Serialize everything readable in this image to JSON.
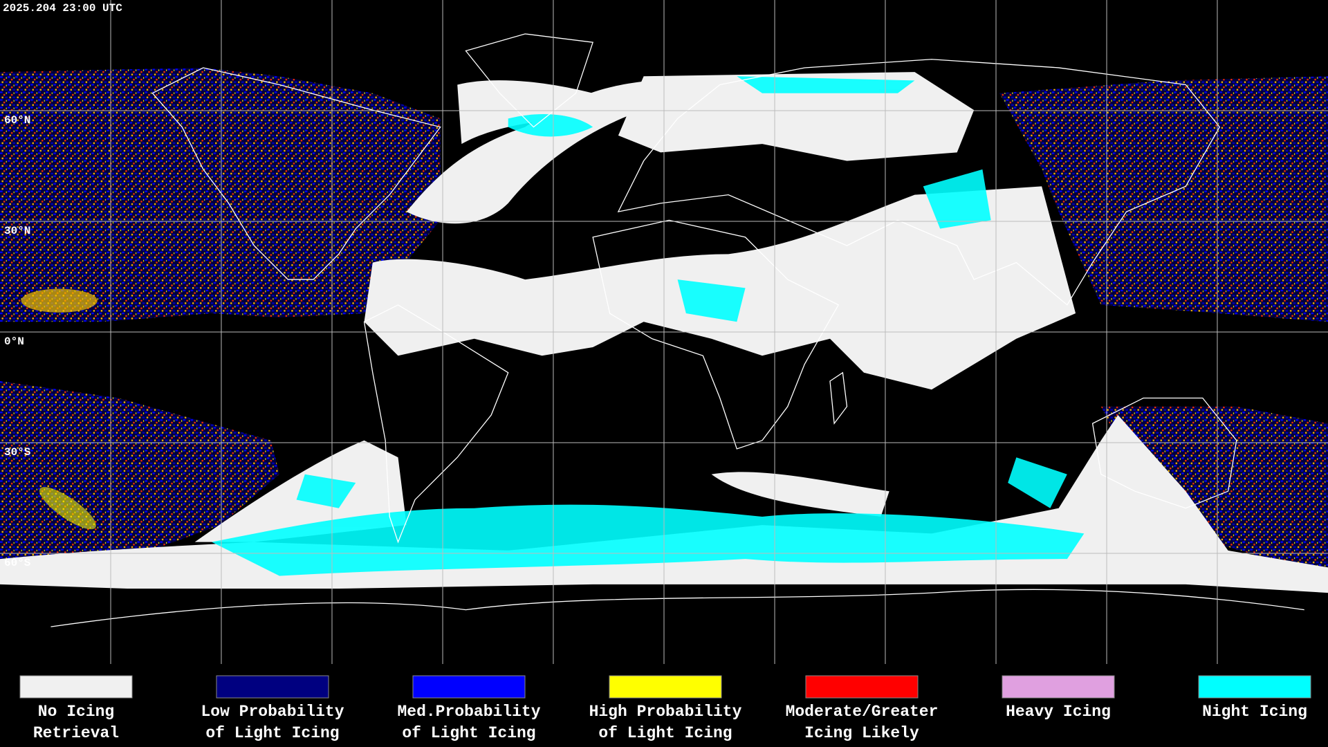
{
  "header": {
    "timestamp": "2025.204 23:00 UTC"
  },
  "map": {
    "latitude_labels": [
      "60°N",
      "30°N",
      "0°N",
      "30°S",
      "60°S"
    ]
  },
  "legend": {
    "items": [
      {
        "color": "#f0f0f0",
        "label_lines": [
          "No Icing",
          "Retrieval"
        ]
      },
      {
        "color": "#000080",
        "label_lines": [
          "Low Probability",
          "of Light Icing"
        ]
      },
      {
        "color": "#0000ff",
        "label_lines": [
          "Med.Probability",
          "of Light Icing"
        ]
      },
      {
        "color": "#ffff00",
        "label_lines": [
          "High Probability",
          "of Light Icing"
        ]
      },
      {
        "color": "#ff0000",
        "label_lines": [
          "Moderate/Greater",
          "Icing Likely"
        ]
      },
      {
        "color": "#e0a0e0",
        "label_lines": [
          "Heavy Icing"
        ]
      },
      {
        "color": "#00ffff",
        "label_lines": [
          "Night Icing"
        ]
      }
    ]
  }
}
